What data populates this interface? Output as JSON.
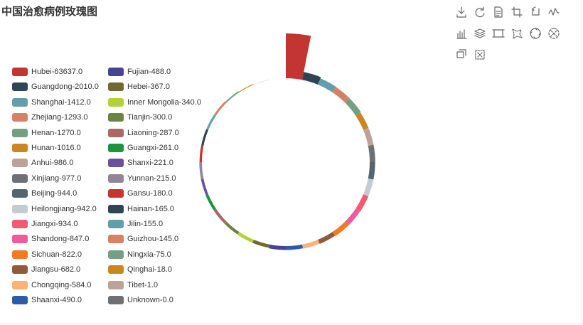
{
  "title": "中国治愈病例玫瑰图",
  "toolbox": [
    {
      "name": "save-as-image-icon"
    },
    {
      "name": "restore-icon"
    },
    {
      "name": "data-view-icon"
    },
    {
      "name": "zoom-icon"
    },
    {
      "name": "zoom-back-icon"
    },
    {
      "name": "line-chart-icon"
    },
    {
      "name": "bar-chart-icon"
    },
    {
      "name": "stack-icon"
    },
    {
      "name": "rect-select-icon"
    },
    {
      "name": "polygon-select-icon"
    },
    {
      "name": "keep-select-icon"
    },
    {
      "name": "clear-select-icon"
    },
    {
      "name": "brush-icon"
    },
    {
      "name": "clear-brush-icon"
    }
  ],
  "chart_data": {
    "type": "pie",
    "rose_type": "radius",
    "title": "中国治愈病例玫瑰图",
    "legend_position": "left",
    "data": [
      {
        "name": "Hubei",
        "value": 63637.0,
        "label": "Hubei-63637.0",
        "color": "#c23531"
      },
      {
        "name": "Guangdong",
        "value": 2010.0,
        "label": "Guangdong-2010.0",
        "color": "#2f4554"
      },
      {
        "name": "Shanghai",
        "value": 1412.0,
        "label": "Shanghai-1412.0",
        "color": "#61a0a8"
      },
      {
        "name": "Zhejiang",
        "value": 1293.0,
        "label": "Zhejiang-1293.0",
        "color": "#d48265"
      },
      {
        "name": "Henan",
        "value": 1270.0,
        "label": "Henan-1270.0",
        "color": "#749f83"
      },
      {
        "name": "Hunan",
        "value": 1016.0,
        "label": "Hunan-1016.0",
        "color": "#ca8622"
      },
      {
        "name": "Anhui",
        "value": 986.0,
        "label": "Anhui-986.0",
        "color": "#bda29a"
      },
      {
        "name": "Xinjiang",
        "value": 977.0,
        "label": "Xinjiang-977.0",
        "color": "#6e7074"
      },
      {
        "name": "Beijing",
        "value": 944.0,
        "label": "Beijing-944.0",
        "color": "#546570"
      },
      {
        "name": "Heilongjiang",
        "value": 942.0,
        "label": "Heilongjiang-942.0",
        "color": "#c4ccd3"
      },
      {
        "name": "Jiangxi",
        "value": 934.0,
        "label": "Jiangxi-934.0",
        "color": "#f05b72"
      },
      {
        "name": "Shandong",
        "value": 847.0,
        "label": "Shandong-847.0",
        "color": "#ef5b9c"
      },
      {
        "name": "Sichuan",
        "value": 822.0,
        "label": "Sichuan-822.0",
        "color": "#f47920"
      },
      {
        "name": "Jiangsu",
        "value": 682.0,
        "label": "Jiangsu-682.0",
        "color": "#905a3d"
      },
      {
        "name": "Chongqing",
        "value": 584.0,
        "label": "Chongqing-584.0",
        "color": "#fab27b"
      },
      {
        "name": "Shaanxi",
        "value": 490.0,
        "label": "Shaanxi-490.0",
        "color": "#2a5caa"
      },
      {
        "name": "Fujian",
        "value": 488.0,
        "label": "Fujian-488.0",
        "color": "#444693"
      },
      {
        "name": "Hebei",
        "value": 367.0,
        "label": "Hebei-367.0",
        "color": "#726930"
      },
      {
        "name": "Inner Mongolia",
        "value": 340.0,
        "label": "Inner Mongolia-340.0",
        "color": "#b2d235"
      },
      {
        "name": "Tianjin",
        "value": 300.0,
        "label": "Tianjin-300.0",
        "color": "#6d8346"
      },
      {
        "name": "Liaoning",
        "value": 287.0,
        "label": "Liaoning-287.0",
        "color": "#ac6767"
      },
      {
        "name": "Guangxi",
        "value": 261.0,
        "label": "Guangxi-261.0",
        "color": "#1d953f"
      },
      {
        "name": "Shanxi",
        "value": 221.0,
        "label": "Shanxi-221.0",
        "color": "#6950a1"
      },
      {
        "name": "Yunnan",
        "value": 215.0,
        "label": "Yunnan-215.0",
        "color": "#918597"
      },
      {
        "name": "Gansu",
        "value": 180.0,
        "label": "Gansu-180.0",
        "color": "#c23531"
      },
      {
        "name": "Hainan",
        "value": 165.0,
        "label": "Hainan-165.0",
        "color": "#2f4554"
      },
      {
        "name": "Jilin",
        "value": 155.0,
        "label": "Jilin-155.0",
        "color": "#61a0a8"
      },
      {
        "name": "Guizhou",
        "value": 145.0,
        "label": "Guizhou-145.0",
        "color": "#d48265"
      },
      {
        "name": "Ningxia",
        "value": 75.0,
        "label": "Ningxia-75.0",
        "color": "#749f83"
      },
      {
        "name": "Qinghai",
        "value": 18.0,
        "label": "Qinghai-18.0",
        "color": "#ca8622"
      },
      {
        "name": "Tibet",
        "value": 1.0,
        "label": "Tibet-1.0",
        "color": "#bda29a"
      },
      {
        "name": "Unknown",
        "value": 0.0,
        "label": "Unknown-0.0",
        "color": "#6e7074"
      }
    ]
  }
}
